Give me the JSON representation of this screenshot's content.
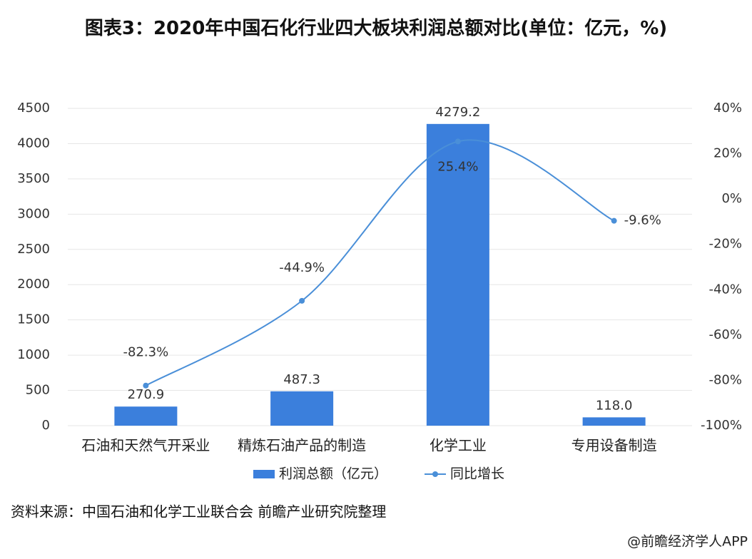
{
  "chart_data": {
    "type": "bar",
    "title": "图表3：2020年中国石化行业四大板块利润总额对比(单位：亿元，%)",
    "categories": [
      "石油和天然气开采业",
      "精炼石油产品的制造",
      "化学工业",
      "专用设备制造"
    ],
    "series": [
      {
        "name": "利润总额（亿元）",
        "type": "bar",
        "color": "#3b7fdc",
        "values": [
          270.9,
          487.3,
          4279.2,
          118.0
        ],
        "value_labels": [
          "270.9",
          "487.3",
          "4279.2",
          "118.0"
        ]
      },
      {
        "name": "同比增长",
        "type": "line",
        "axis": "y2",
        "color": "#4a8fd8",
        "values": [
          -82.3,
          -44.9,
          25.4,
          -9.6
        ],
        "value_labels": [
          "-82.3%",
          "-44.9%",
          "25.4%",
          "-9.6%"
        ]
      }
    ],
    "ylim": [
      0,
      4500
    ],
    "yticks": [
      0,
      500,
      1000,
      1500,
      2000,
      2500,
      3000,
      3500,
      4000,
      4500
    ],
    "y2lim": [
      -100,
      40
    ],
    "y2ticks": [
      {
        "value": -100,
        "label": "-100%"
      },
      {
        "value": -80,
        "label": "-80%"
      },
      {
        "value": -60,
        "label": "-60%"
      },
      {
        "value": -40,
        "label": "-40%"
      },
      {
        "value": -20,
        "label": "-20%"
      },
      {
        "value": 0,
        "label": "0%"
      },
      {
        "value": 20,
        "label": "20%"
      },
      {
        "value": 40,
        "label": "40%"
      }
    ],
    "grid": true,
    "legend": "bottom",
    "source": "资料来源：中国石油和化学工业联合会 前瞻产业研究院整理",
    "watermark": "@前瞻经济学人APP"
  }
}
